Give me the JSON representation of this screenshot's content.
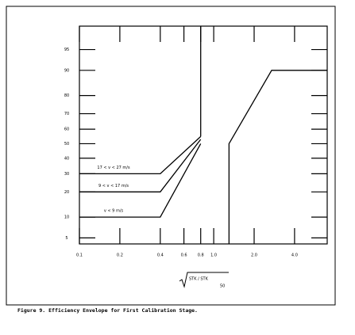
{
  "chart_data": {
    "type": "line",
    "y_scale": "probability",
    "x_scale": "log",
    "xlim": [
      0.1,
      7
    ],
    "ylim": [
      4,
      98
    ],
    "xticks": [
      0.1,
      0.2,
      0.4,
      0.6,
      0.8,
      {
        "value": 1,
        "label": "1.0"
      },
      {
        "value": 2,
        "label": "2.0"
      },
      {
        "value": 4,
        "label": "4.0"
      }
    ],
    "yticks": [
      5,
      10,
      20,
      30,
      40,
      50,
      60,
      70,
      80,
      90,
      95
    ],
    "x_label": "STK / STK",
    "x_label_sub": "50",
    "caption": "Figure 9.  Efficiency Envelope for First Calibration Stage.",
    "series": [
      {
        "name": "17 < v < 27 m/s",
        "color": "#000000",
        "x": [
          0.1,
          0.4,
          0.8
        ],
        "values": [
          30,
          30,
          55
        ]
      },
      {
        "name": "9 < v < 17 m/s",
        "color": "#000000",
        "x": [
          0.1,
          0.4,
          0.8
        ],
        "values": [
          20,
          20,
          53
        ]
      },
      {
        "name": "v < 9 m/s",
        "color": "#000000",
        "x": [
          0.1,
          0.4,
          0.8
        ],
        "values": [
          10,
          10,
          50
        ]
      },
      {
        "color": "#000000",
        "x": [
          0.8,
          0.8
        ],
        "values": [
          98,
          55
        ]
      },
      {
        "color": "#000000",
        "x": [
          1.3,
          1.3,
          2.7,
          7
        ],
        "values": [
          4,
          50,
          90,
          90
        ]
      }
    ]
  }
}
